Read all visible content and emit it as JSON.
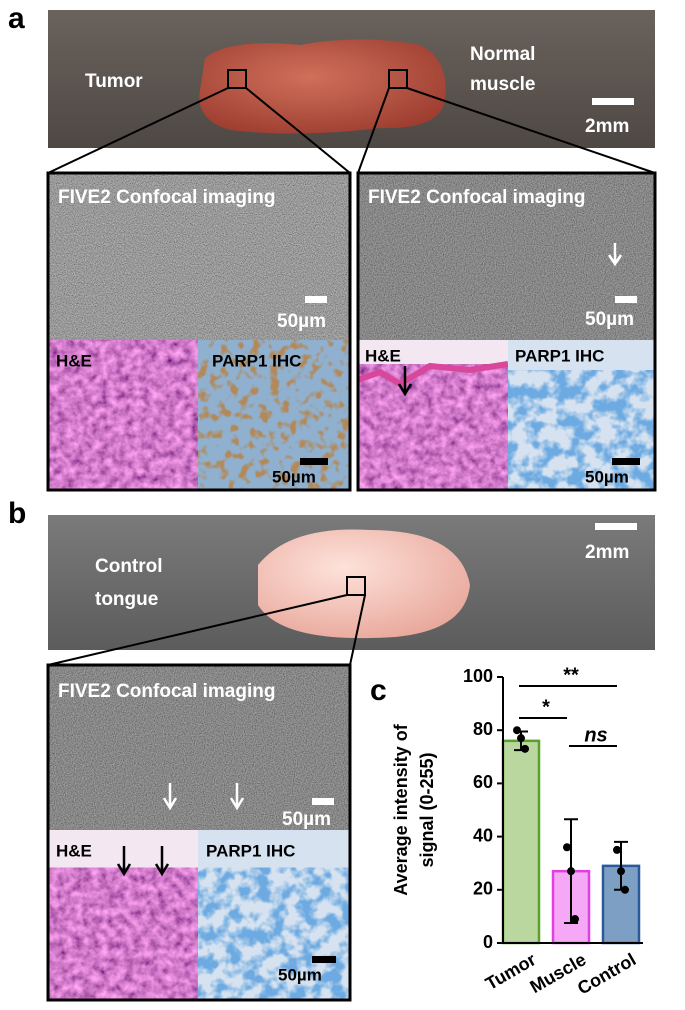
{
  "panel_a": {
    "label": "a",
    "tumor": "Tumor",
    "muscle": [
      "Normal",
      "muscle"
    ],
    "scale": "2mm",
    "insets": [
      {
        "title": "FIVE2 Confocal imaging",
        "scale": "50µm",
        "he": "H&E",
        "ihc": "PARP1 IHC",
        "ihc_scale": "50µm"
      },
      {
        "title": "FIVE2 Confocal imaging",
        "scale": "50µm",
        "he": "H&E",
        "ihc": "PARP1 IHC",
        "ihc_scale": "50µm"
      }
    ]
  },
  "panel_b": {
    "label": "b",
    "control": [
      "Control",
      "tongue"
    ],
    "scale": "2mm",
    "inset": {
      "title": "FIVE2 Confocal imaging",
      "scale": "50µm",
      "he": "H&E",
      "ihc": "PARP1 IHC",
      "ihc_scale": "50µm"
    }
  },
  "chart_data": {
    "label": "c",
    "type": "bar",
    "ylabel": [
      "Average intensity of",
      "signal (0-255)"
    ],
    "categories": [
      "Tumor",
      "Muscle",
      "Control"
    ],
    "values": [
      76,
      27,
      29
    ],
    "errors": [
      3.5,
      19.5,
      9
    ],
    "points": [
      [
        80,
        77,
        73
      ],
      [
        36,
        27,
        9
      ],
      [
        35,
        27,
        20
      ]
    ],
    "colors": [
      "#b9d79f",
      "#f5a8f5",
      "#7e9fc4"
    ],
    "edge_colors": [
      "#5aa12b",
      "#e040e0",
      "#2b5a9a"
    ],
    "ylim": [
      0,
      100
    ],
    "yticks": [
      0,
      20,
      40,
      60,
      80,
      100
    ],
    "significance": [
      "**",
      "*",
      "ns"
    ]
  }
}
